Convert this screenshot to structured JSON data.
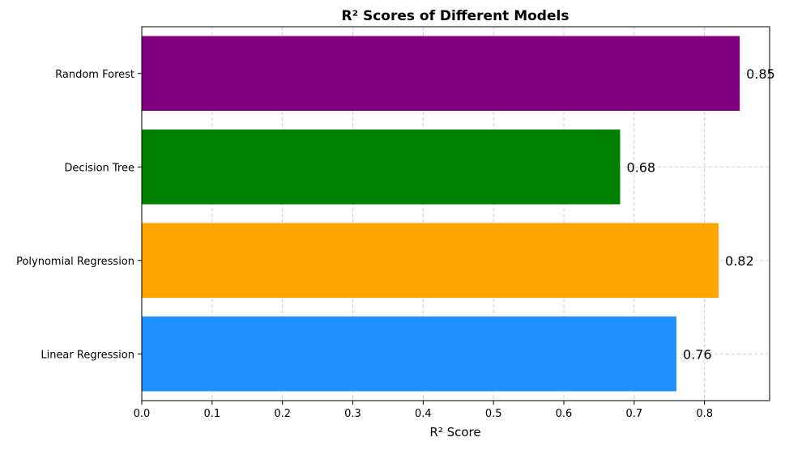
{
  "chart_data": {
    "type": "bar",
    "orientation": "horizontal",
    "title": "R² Scores of Different Models",
    "xlabel": "R² Score",
    "ylabel": "",
    "categories": [
      "Linear Regression",
      "Polynomial Regression",
      "Decision Tree",
      "Random Forest"
    ],
    "values": [
      0.76,
      0.82,
      0.68,
      0.85
    ],
    "data_labels": [
      "0.76",
      "0.82",
      "0.68",
      "0.85"
    ],
    "colors": [
      "#1E90FF",
      "#FFA500",
      "#008000",
      "#800080"
    ],
    "xlim": [
      0,
      0.8925
    ],
    "xticks": [
      0.0,
      0.1,
      0.2,
      0.3,
      0.4,
      0.5,
      0.6,
      0.7,
      0.8
    ],
    "xtick_labels": [
      "0.0",
      "0.1",
      "0.2",
      "0.3",
      "0.4",
      "0.5",
      "0.6",
      "0.7",
      "0.8"
    ],
    "grid": true
  }
}
